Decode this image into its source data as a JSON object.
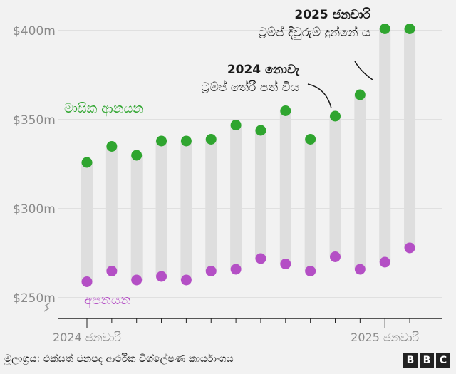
{
  "chart_data": {
    "type": "scatter",
    "title": "",
    "xlabel": "",
    "ylabel": "",
    "ylim": [
      245,
      410
    ],
    "y_ticks": [
      {
        "value": 250,
        "label": "$250m"
      },
      {
        "value": 300,
        "label": "$300m"
      },
      {
        "value": 350,
        "label": "$350m"
      },
      {
        "value": 400,
        "label": "$400m"
      }
    ],
    "x_ticks": [
      {
        "index": 0,
        "label": "2024 ජනවාරි"
      },
      {
        "index": 12,
        "label": "2025 ජනවාරි"
      }
    ],
    "x_count": 14,
    "series": [
      {
        "name": "මාසික ආනයන",
        "color": "#2fa52f",
        "values": [
          326,
          335,
          330,
          338,
          338,
          339,
          347,
          344,
          355,
          339,
          352,
          364,
          401,
          401
        ]
      },
      {
        "name": "අපනයන",
        "color": "#b44fc5",
        "values": [
          259,
          265,
          260,
          262,
          260,
          265,
          266,
          272,
          269,
          265,
          273,
          266,
          270,
          278
        ]
      }
    ],
    "annotations": [
      {
        "index": 10,
        "strong": "2024 නොවැ",
        "text": "ට්‍රම්ප් තේරී පත් විය"
      },
      {
        "index": 12,
        "strong": "2025 ජනවාරි",
        "text": "ට්‍රම්ප් දිවුරුම් දුන්නේ ය"
      }
    ],
    "grid": true,
    "axis_break": true
  },
  "colors": {
    "background": "#f2f2f2",
    "range_bar": "#dedede",
    "grid": "#cfcfcf",
    "axis": "#222222"
  },
  "footer": {
    "source": "මූලාශ්‍රය: එක්සත් ජනපද ආර්ථික විශ්ලේෂණ කාර්යාංශය",
    "logo_letters": [
      "B",
      "B",
      "C"
    ]
  }
}
